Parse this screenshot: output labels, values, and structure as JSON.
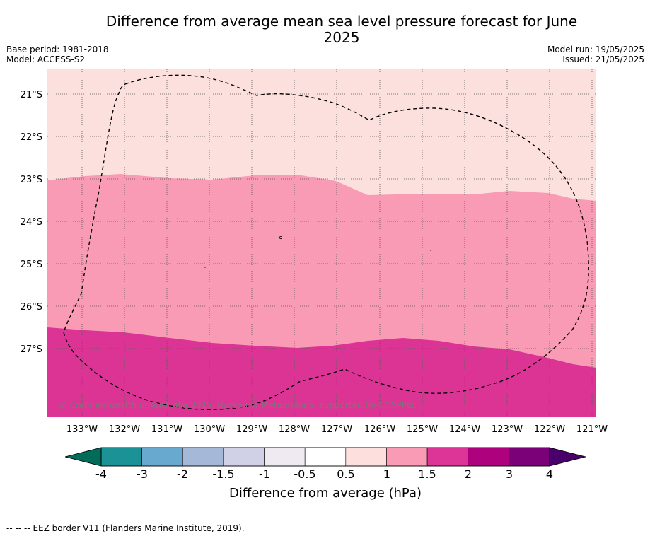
{
  "title": "Difference from average mean sea level pressure forecast for June 2025",
  "header": {
    "base_period": "Base period: 1981-2018",
    "model": "Model: ACCESS-S2",
    "model_run": "Model run: 19/05/2025",
    "issued": "Issued: 21/05/2025"
  },
  "map": {
    "lon_labels": [
      "133°W",
      "132°W",
      "131°W",
      "130°W",
      "129°W",
      "128°W",
      "127°W",
      "126°W",
      "125°W",
      "124°W",
      "123°W",
      "122°W",
      "121°W"
    ],
    "lat_labels": [
      "21°S",
      "22°S",
      "23°S",
      "24°S",
      "25°S",
      "26°S",
      "27°S"
    ],
    "copyright": "© Commonwealth of Australia 2025, Bureau of Meteorology, supported by COSPPac",
    "zones": [
      {
        "category": "0.5 to 1",
        "color": "#fce0dd"
      },
      {
        "category": "1 to 1.5",
        "color": "#f99bb5"
      },
      {
        "category": "1.5 to 2",
        "color": "#dc3495"
      }
    ]
  },
  "colorbar": {
    "label": "Difference from average (hPa)",
    "ticks": [
      "-4",
      "-3",
      "-2",
      "-1.5",
      "-1",
      "-0.5",
      "0.5",
      "1",
      "1.5",
      "2",
      "3",
      "4"
    ],
    "colors": [
      "#1b9296",
      "#68a9cf",
      "#a5b8d8",
      "#d0d1e6",
      "#efe9f2",
      "#ffffff",
      "#fde0dd",
      "#f99bb5",
      "#dc3497",
      "#ae017e",
      "#7a0177"
    ],
    "under_color": "#016c59",
    "over_color": "#49006a"
  },
  "footer": {
    "legend_symbol": "-- -- --",
    "legend_text": "EEZ border V11 (Flanders Marine Institute, 2019)."
  }
}
